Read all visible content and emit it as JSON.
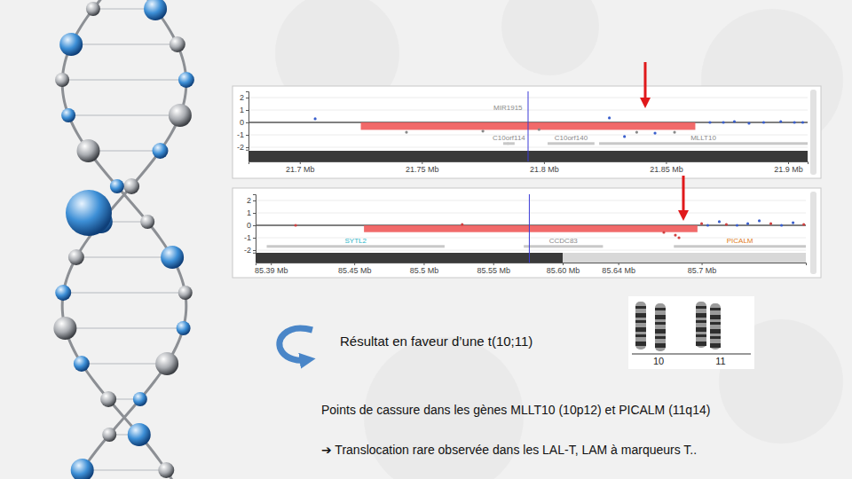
{
  "chart_data": [
    {
      "type": "scatter",
      "xlim": [
        21.679,
        21.908
      ],
      "xticks": [
        {
          "value": 21.7,
          "label": "21.7 Mb"
        },
        {
          "value": 21.75,
          "label": "21.75 Mb"
        },
        {
          "value": 21.8,
          "label": "21.8 Mb"
        },
        {
          "value": 21.85,
          "label": "21.85 Mb"
        },
        {
          "value": 21.9,
          "label": "21.9 Mb"
        }
      ],
      "ylim": [
        -2.2,
        2.5
      ],
      "yticks": [
        2,
        1,
        0,
        -1,
        -2
      ],
      "grid": true,
      "series": [
        {
          "x": [
            21.7063,
            21.7437,
            21.775,
            21.798,
            21.8268,
            21.833,
            21.838,
            21.8455,
            21.8535,
            21.868,
            21.8735,
            21.878,
            21.884,
            21.89,
            21.897,
            21.9026,
            21.906
          ],
          "values": [
            0.29,
            -0.79,
            -0.7,
            -0.57,
            0.36,
            -1.14,
            -0.79,
            -0.86,
            -0.79,
            0,
            0,
            0.07,
            -0.07,
            0,
            0.07,
            0,
            0
          ],
          "colors": [
            "#3a5fcd",
            "#888888",
            "#888888",
            "#888888",
            "#3a5fcd",
            "#3a5fcd",
            "#888888",
            "#3a5fcd",
            "#888888",
            "#3a5fcd",
            "#3a5fcd",
            "#3a5fcd",
            "#3a5fcd",
            "#3a5fcd",
            "#3a5fcd",
            "#3a5fcd",
            "#3a5fcd"
          ]
        }
      ],
      "segments": [
        {
          "start": 21.725,
          "end": 21.862,
          "value": -0.6,
          "color": "#f05a5a"
        }
      ],
      "cursor": 21.7935,
      "genes": [
        {
          "label": "MIR1915",
          "start": 21.785,
          "end": 21.7855,
          "color": "#8a8a8a"
        },
        {
          "label": "C10orf114",
          "start": 21.7833,
          "end": 21.788,
          "color": "#8a8a8a"
        },
        {
          "label": "C10orf140",
          "start": 21.8015,
          "end": 21.8207,
          "color": "#8a8a8a"
        },
        {
          "label": "MLLT10",
          "start": 21.8226,
          "end": 21.908,
          "color": "#8a8a8a"
        }
      ],
      "bands": [
        {
          "start": 21.679,
          "end": 21.908,
          "color": "#3a3a3a"
        }
      ]
    },
    {
      "type": "scatter",
      "xlim": [
        85.379,
        85.775
      ],
      "xticks": [
        {
          "value": 85.39,
          "label": "85.39 Mb"
        },
        {
          "value": 85.45,
          "label": "85.45 Mb"
        },
        {
          "value": 85.5,
          "label": "85.5 Mb"
        },
        {
          "value": 85.55,
          "label": "85.55 Mb"
        },
        {
          "value": 85.6,
          "label": "85.60 Mb"
        },
        {
          "value": 85.64,
          "label": "85.64 Mb"
        },
        {
          "value": 85.7,
          "label": "85.7 Mb"
        }
      ],
      "ylim": [
        -2.2,
        2.5
      ],
      "yticks": [
        2,
        1,
        0,
        -1,
        -2
      ],
      "grid": true,
      "series": [
        {
          "x": [
            85.4078,
            85.5277,
            85.6728,
            85.6811,
            85.6837,
            85.7,
            85.7044,
            85.7127,
            85.7178,
            85.7255,
            85.7332,
            85.7415,
            85.7498,
            85.7575,
            85.7658,
            85.7735
          ],
          "values": [
            0,
            0.07,
            -0.57,
            -0.79,
            -1.0,
            0.14,
            0,
            0.29,
            0.07,
            0,
            0.14,
            0.36,
            0.14,
            0,
            0.21,
            0.07
          ],
          "colors": [
            "#d04040",
            "#d04040",
            "#d04040",
            "#d04040",
            "#d04040",
            "#d04040",
            "#3a5fcd",
            "#3a5fcd",
            "#d04040",
            "#3a5fcd",
            "#3a5fcd",
            "#3a5fcd",
            "#d04040",
            "#3a5fcd",
            "#3a5fcd",
            "#d04040"
          ]
        }
      ],
      "segments": [
        {
          "start": 85.457,
          "end": 85.697,
          "value": -0.55,
          "color": "#f05a5a"
        }
      ],
      "cursor": 85.576,
      "genes": [
        {
          "label": "SYTL2",
          "start": 85.387,
          "end": 85.515,
          "color": "#2ab5c8"
        },
        {
          "label": "CCDC83",
          "start": 85.572,
          "end": 85.629,
          "color": "#8a8a8a"
        },
        {
          "label": "PICALM",
          "start": 85.68,
          "end": 85.775,
          "color": "#e07b1a"
        }
      ],
      "bands": [
        {
          "start": 85.379,
          "end": 85.6,
          "color": "#3a3a3a"
        },
        {
          "start": 85.6,
          "end": 85.775,
          "color": "#d8d8d8"
        }
      ]
    }
  ],
  "slide": {
    "conclusion": "Résultat en faveur d’une t(10;11)",
    "karyotype_labels": [
      "10",
      "11"
    ],
    "breakpoints": "Points de cassure dans les gènes MLLT10 (10p12) et PICALM (11q14)",
    "note": "➔ Translocation rare observée dans les LAL-T, LAM à marqueurs T.."
  }
}
